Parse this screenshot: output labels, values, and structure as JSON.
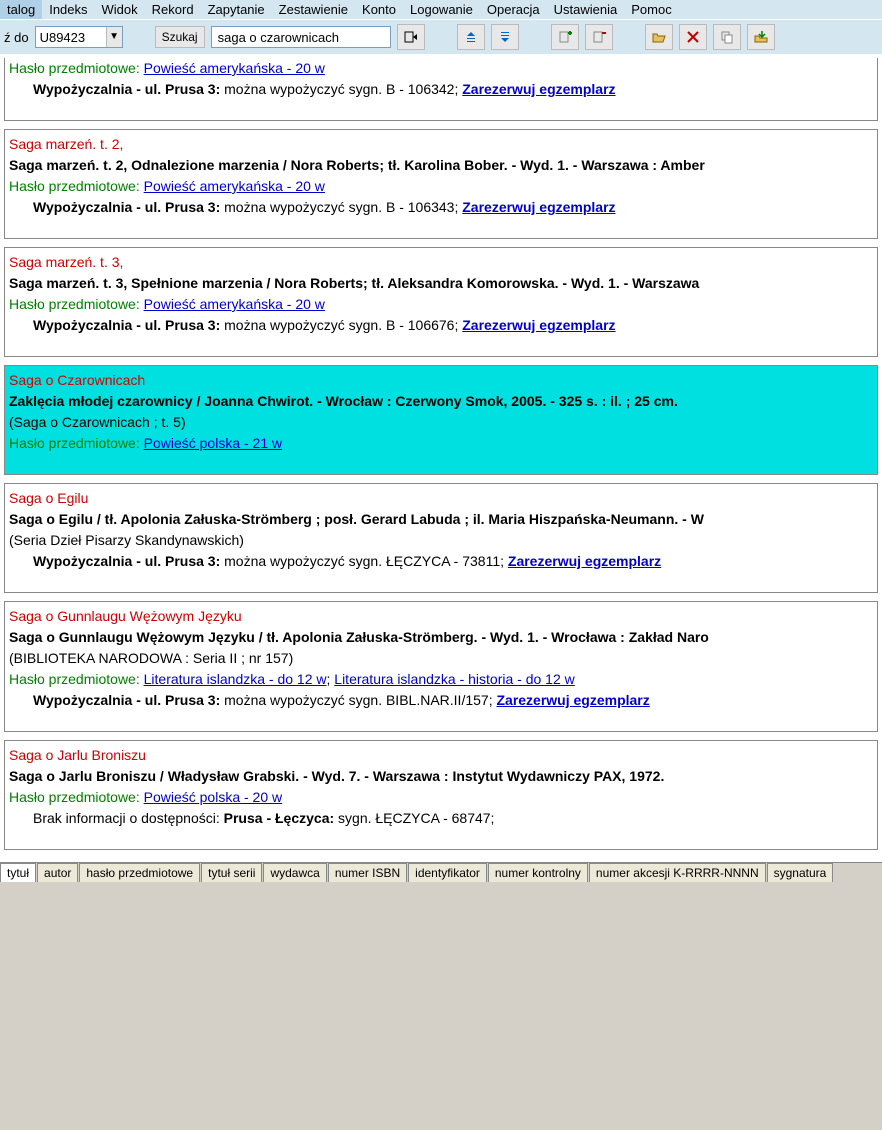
{
  "menu": [
    "talog",
    "Indeks",
    "Widok",
    "Rekord",
    "Zapytanie",
    "Zestawienie",
    "Konto",
    "Logowanie",
    "Operacja",
    "Ustawienia",
    "Pomoc"
  ],
  "toolbar": {
    "goto_label": "ź do",
    "goto_value": "U89423",
    "search_label": "Szukaj",
    "search_value": "saga o czarownicach"
  },
  "records": [
    {
      "subject_label": "Hasło przedmiotowe:",
      "subjects": [
        "Powieść amerykańska - 20 w"
      ],
      "loc_prefix": "Wypożyczalnia - ul. Prusa 3:",
      "loc_text": " można wypożyczyć sygn. B - 106342; ",
      "reserve": "Zarezerwuj egzemplarz"
    },
    {
      "title_red": "Saga marzeń. t. 2,",
      "desc": "Saga marzeń. t. 2, Odnalezione marzenia / Nora Roberts; tł. Karolina Bober. - Wyd. 1. - Warszawa : Amber",
      "subject_label": "Hasło przedmiotowe:",
      "subjects": [
        "Powieść amerykańska - 20 w"
      ],
      "loc_prefix": "Wypożyczalnia - ul. Prusa 3:",
      "loc_text": " można wypożyczyć sygn. B - 106343; ",
      "reserve": "Zarezerwuj egzemplarz"
    },
    {
      "title_red": "Saga marzeń. t. 3,",
      "desc": "Saga marzeń. t. 3, Spełnione marzenia / Nora Roberts; tł. Aleksandra Komorowska. - Wyd. 1. - Warszawa",
      "subject_label": "Hasło przedmiotowe:",
      "subjects": [
        "Powieść amerykańska - 20 w"
      ],
      "loc_prefix": "Wypożyczalnia - ul. Prusa 3:",
      "loc_text": " można wypożyczyć sygn. B - 106676; ",
      "reserve": "Zarezerwuj egzemplarz"
    },
    {
      "highlight": true,
      "title_red": "Saga o Czarownicach",
      "desc": "Zaklęcia młodej czarownicy / Joanna Chwirot. - Wrocław : Czerwony Smok, 2005. - 325 s. : il. ; 25 cm.",
      "series": "(Saga o Czarownicach ; t. 5)",
      "subject_label": "Hasło przedmiotowe:",
      "subjects": [
        "Powieść polska - 21 w"
      ]
    },
    {
      "title_red": "Saga o Egilu",
      "desc": "Saga o Egilu / tł. Apolonia Załuska-Strömberg ; posł. Gerard Labuda ; il. Maria Hiszpańska-Neumann. - W",
      "series": "(Seria Dzieł Pisarzy Skandynawskich)",
      "loc_prefix": "Wypożyczalnia - ul. Prusa 3:",
      "loc_text": " można wypożyczyć sygn. ŁĘCZYCA - 73811; ",
      "reserve": "Zarezerwuj egzemplarz"
    },
    {
      "title_red": "Saga o Gunnlaugu Wężowym Języku",
      "desc": "Saga o Gunnlaugu Wężowym Języku / tł. Apolonia Załuska-Strömberg. - Wyd. 1. - Wrocława : Zakład Naro",
      "series": "(BIBLIOTEKA NARODOWA : Seria II ; nr 157)",
      "subject_label": "Hasło przedmiotowe:",
      "subjects": [
        "Literatura islandzka - do 12 w",
        "Literatura islandzka - historia - do 12 w"
      ],
      "loc_prefix": "Wypożyczalnia - ul. Prusa 3:",
      "loc_text": " można wypożyczyć sygn. BIBL.NAR.II/157; ",
      "reserve": "Zarezerwuj egzemplarz"
    },
    {
      "title_red": "Saga o Jarlu Broniszu",
      "desc": "Saga o Jarlu Broniszu / Władysław Grabski. - Wyd. 7. - Warszawa : Instytut Wydawniczy PAX, 1972.",
      "subject_label": "Hasło przedmiotowe:",
      "subjects": [
        "Powieść polska - 20 w"
      ],
      "noinfo_prefix": "Brak informacji o dostępności: ",
      "noinfo_bold": "Prusa - Łęczyca:",
      "noinfo_text": " sygn. ŁĘCZYCA - 68747;"
    }
  ],
  "tabs": [
    "tytuł",
    "autor",
    "hasło przedmiotowe",
    "tytuł serii",
    "wydawca",
    "numer ISBN",
    "identyfikator",
    "numer kontrolny",
    "numer akcesji K-RRRR-NNNN",
    "sygnatura"
  ]
}
